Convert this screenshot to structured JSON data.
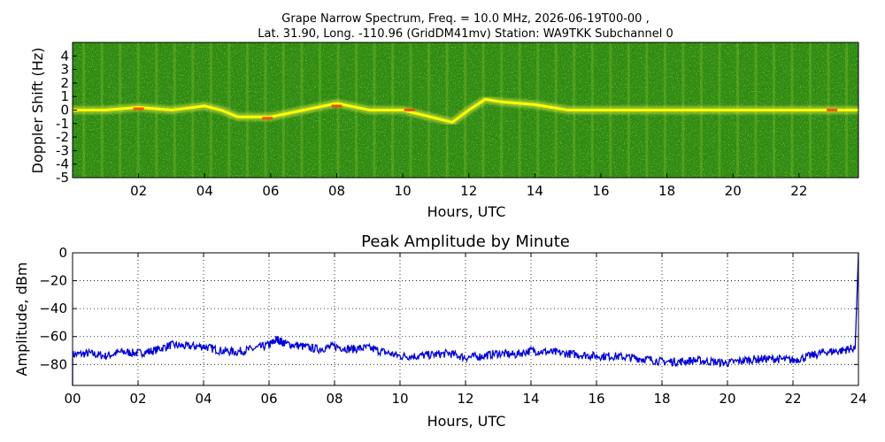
{
  "chart_data": [
    {
      "type": "heatmap",
      "title": "Grape Narrow Spectrum, Freq. = 10.0 MHz, 2026-06-19T00-00 ,",
      "subtitle": "Lat.  31.90, Long. -110.96 (GridDM41mv) Station: WA9TKK Subchannel 0",
      "xlabel": "Hours, UTC",
      "ylabel": "Doppler Shift (Hz)",
      "xlim": [
        0,
        23.8
      ],
      "ylim": [
        -5,
        5
      ],
      "xticks": [
        "02",
        "04",
        "06",
        "08",
        "10",
        "12",
        "14",
        "16",
        "18",
        "20",
        "22"
      ],
      "xtick_values": [
        2,
        4,
        6,
        8,
        10,
        12,
        14,
        16,
        18,
        20,
        22
      ],
      "yticks": [
        "4",
        "3",
        "2",
        "1",
        "0",
        "-1",
        "-2",
        "-3",
        "-4",
        "-5"
      ],
      "ytick_values": [
        4,
        3,
        2,
        1,
        0,
        -1,
        -2,
        -3,
        -4,
        -5
      ],
      "colormap": {
        "background": "#2e8b10",
        "mid": "#9acd32",
        "high": "#ffff00",
        "peak": "#ff3300"
      },
      "ridge_trace": {
        "x": [
          0,
          1,
          2,
          3,
          4,
          4.5,
          5,
          6,
          7,
          8,
          9,
          10,
          11,
          11.5,
          12,
          12.5,
          13,
          14,
          15,
          16,
          18,
          20,
          22,
          23.8
        ],
        "y": [
          0,
          0,
          0.2,
          0,
          0.3,
          0,
          -0.5,
          -0.5,
          0,
          0.5,
          0,
          0,
          -0.6,
          -0.9,
          0,
          0.8,
          0.6,
          0.4,
          0,
          0,
          0,
          0,
          0,
          0
        ]
      },
      "grid": false
    },
    {
      "type": "line",
      "title": "Peak Amplitude by Minute",
      "xlabel": "Hours, UTC",
      "ylabel": "Amplitude, dBm",
      "xlim": [
        0,
        24
      ],
      "ylim": [
        -95,
        0
      ],
      "xticks": [
        "00",
        "02",
        "04",
        "06",
        "08",
        "10",
        "12",
        "14",
        "16",
        "18",
        "20",
        "22",
        "24"
      ],
      "xtick_values": [
        0,
        2,
        4,
        6,
        8,
        10,
        12,
        14,
        16,
        18,
        20,
        22,
        24
      ],
      "yticks": [
        "0",
        "−20",
        "−40",
        "−60",
        "−80"
      ],
      "ytick_values": [
        0,
        -20,
        -40,
        -60,
        -80
      ],
      "grid": true,
      "series": [
        {
          "color": "#0000dd",
          "x": [
            0,
            0.5,
            1,
            1.5,
            2,
            2.5,
            3,
            3.5,
            4,
            4.5,
            5,
            5.5,
            6,
            6.25,
            6.5,
            7,
            7.5,
            8,
            8.5,
            9,
            9.5,
            10,
            10.5,
            11,
            11.5,
            12,
            12.5,
            13,
            13.5,
            14,
            14.5,
            15,
            15.5,
            16,
            16.5,
            17,
            17.5,
            18,
            18.5,
            19,
            19.5,
            20,
            20.5,
            21,
            21.5,
            22,
            22.5,
            23,
            23.5,
            23.9,
            24
          ],
          "y": [
            -73,
            -72,
            -74,
            -71,
            -72,
            -70,
            -66,
            -67,
            -67,
            -70,
            -71,
            -69,
            -66,
            -62,
            -65,
            -67,
            -69,
            -67,
            -69,
            -68,
            -71,
            -74,
            -74,
            -73,
            -72,
            -75,
            -74,
            -72,
            -73,
            -70,
            -71,
            -72,
            -73,
            -74,
            -74,
            -75,
            -76,
            -78,
            -78,
            -77,
            -78,
            -79,
            -77,
            -76,
            -76,
            -77,
            -74,
            -71,
            -70,
            -68,
            0
          ]
        }
      ]
    }
  ]
}
